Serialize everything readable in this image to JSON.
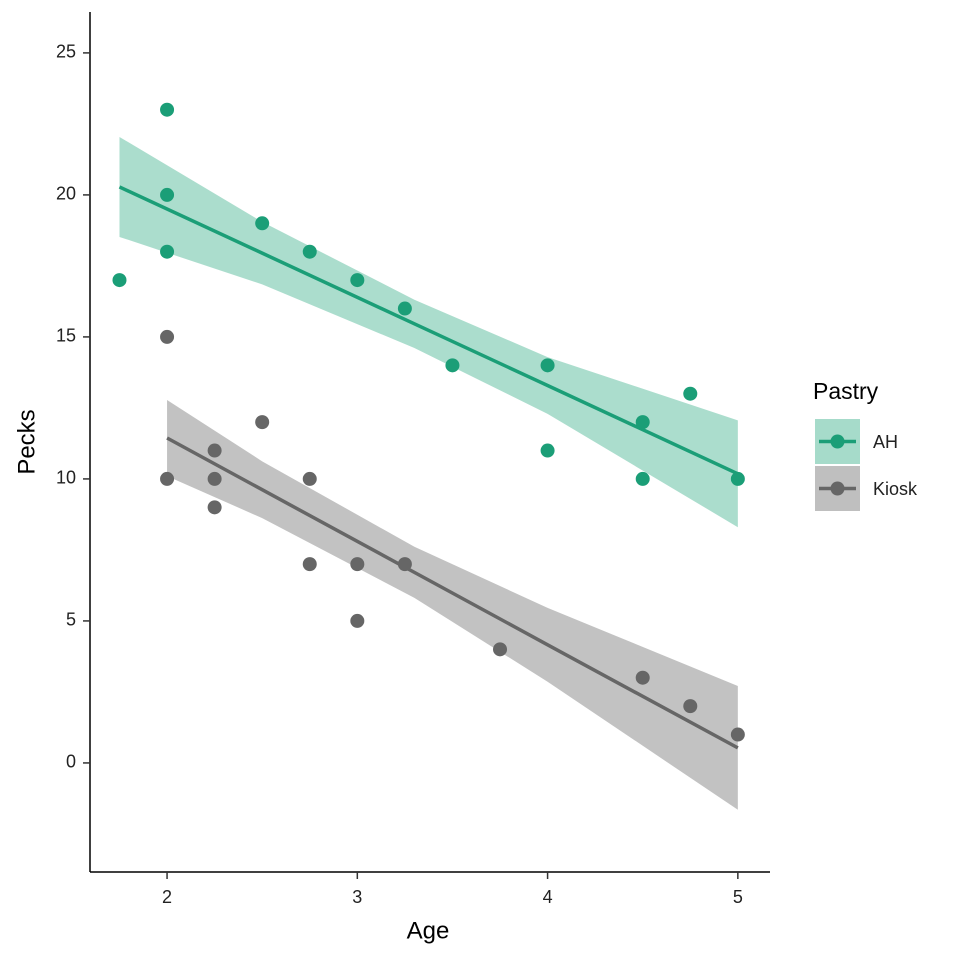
{
  "chart_data": {
    "type": "scatter",
    "x_label": "Age",
    "y_label": "Pecks",
    "legend_title": "Pastry",
    "legend": "right",
    "xlim": [
      1.595,
      5.169
    ],
    "xticks": [
      2,
      3,
      4,
      5
    ],
    "ylim": [
      -3.84,
      26.44
    ],
    "yticks": [
      0,
      5,
      10,
      15,
      20,
      25
    ],
    "series": [
      {
        "name": "AH",
        "color": "#1b9e77",
        "band_color": "#a6dbca",
        "x": [
          1.75,
          2,
          2,
          2,
          2.5,
          2.75,
          3,
          3.25,
          3.5,
          4,
          4,
          4.5,
          4.5,
          4.75,
          5
        ],
        "values": [
          17,
          23,
          20,
          18,
          19,
          18,
          17,
          16,
          14,
          14,
          11,
          12,
          10,
          13,
          10
        ],
        "fit": {
          "x": [
            1.75,
            2.5,
            3.3,
            4,
            5
          ],
          "y": [
            20.28,
            17.95,
            15.46,
            13.29,
            10.18
          ],
          "lower": [
            18.52,
            16.85,
            14.61,
            12.29,
            8.3
          ],
          "upper": [
            22.04,
            19.05,
            16.31,
            14.29,
            12.06
          ]
        }
      },
      {
        "name": "Kiosk",
        "color": "#666666",
        "band_color": "#bfbfbf",
        "x": [
          2,
          2,
          2.25,
          2.25,
          2.25,
          2.5,
          2.75,
          2.75,
          3,
          3,
          3.25,
          3.75,
          4.5,
          4.75,
          5
        ],
        "values": [
          15,
          10,
          11,
          10,
          9,
          12,
          10,
          7,
          7,
          5,
          7,
          4,
          3,
          2,
          1
        ],
        "fit": {
          "x": [
            2,
            2.5,
            3.3,
            4,
            5
          ],
          "y": [
            11.44,
            9.62,
            6.71,
            4.16,
            0.53
          ],
          "lower": [
            10.1,
            8.62,
            5.81,
            2.86,
            -1.65
          ],
          "upper": [
            12.78,
            10.62,
            7.61,
            5.46,
            2.71
          ]
        }
      }
    ]
  }
}
